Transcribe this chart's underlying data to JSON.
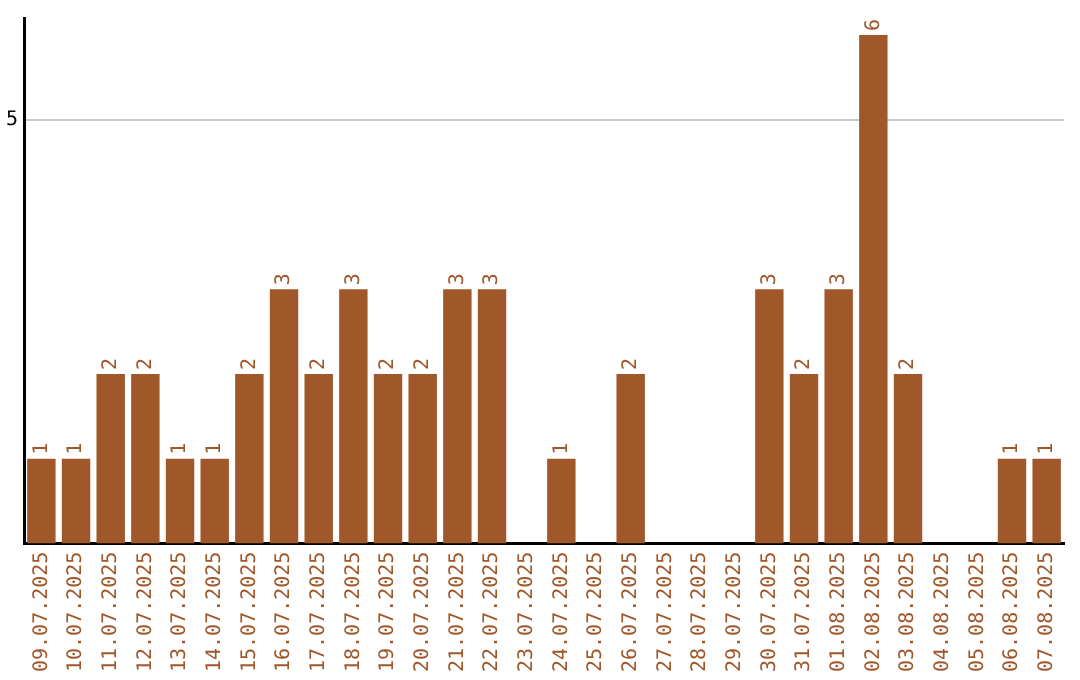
{
  "chart_data": {
    "type": "bar",
    "categories": [
      "09.07.2025",
      "10.07.2025",
      "11.07.2025",
      "12.07.2025",
      "13.07.2025",
      "14.07.2025",
      "15.07.2025",
      "16.07.2025",
      "17.07.2025",
      "18.07.2025",
      "19.07.2025",
      "20.07.2025",
      "21.07.2025",
      "22.07.2025",
      "23.07.2025",
      "24.07.2025",
      "25.07.2025",
      "26.07.2025",
      "27.07.2025",
      "28.07.2025",
      "29.07.2025",
      "30.07.2025",
      "31.07.2025",
      "01.08.2025",
      "02.08.2025",
      "03.08.2025",
      "04.08.2025",
      "05.08.2025",
      "06.08.2025",
      "07.08.2025"
    ],
    "values": [
      1,
      1,
      2,
      2,
      1,
      1,
      2,
      3,
      2,
      3,
      2,
      2,
      3,
      3,
      0,
      1,
      0,
      2,
      0,
      0,
      0,
      3,
      2,
      3,
      6,
      2,
      0,
      0,
      1,
      1
    ],
    "value_labels": [
      "1",
      "1",
      "2",
      "2",
      "1",
      "1",
      "2",
      "3",
      "2",
      "3",
      "2",
      "2",
      "3",
      "3",
      null,
      "1",
      null,
      "2",
      null,
      null,
      null,
      "3",
      "2",
      "3",
      "6",
      "2",
      null,
      null,
      "1",
      "1"
    ],
    "color": "#a0572a",
    "ylim": [
      0,
      6.2
    ],
    "yticks": [
      5
    ],
    "grid": "y",
    "legend": false
  }
}
